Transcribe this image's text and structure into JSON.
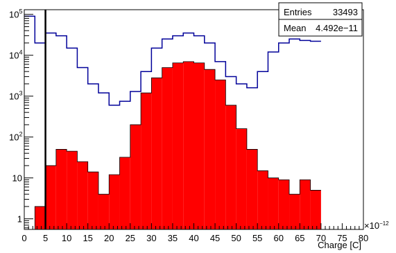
{
  "chart_data": {
    "type": "histogram",
    "xlabel": "Charge [C]",
    "x_multiplier": "×10",
    "x_multiplier_exp": "−12",
    "xlim": [
      0,
      80
    ],
    "ylim": [
      0.55,
      130000
    ],
    "y_scale": "log",
    "x_ticks": [
      0,
      5,
      10,
      15,
      20,
      25,
      30,
      35,
      40,
      45,
      50,
      55,
      60,
      65,
      70,
      75,
      80
    ],
    "y_ticks": [
      {
        "value": 1,
        "label": "1"
      },
      {
        "value": 10,
        "label": "10"
      },
      {
        "value": 100,
        "label": "10",
        "exp": "2"
      },
      {
        "value": 1000,
        "label": "10",
        "exp": "3"
      },
      {
        "value": 10000,
        "label": "10",
        "exp": "4"
      },
      {
        "value": 100000,
        "label": "10",
        "exp": "5"
      }
    ],
    "bin_width": 2.5,
    "bin_edges_start": 0,
    "series": [
      {
        "role": "outline",
        "color": "#000099",
        "filled": false,
        "values": [
          90000,
          20000,
          35000,
          30000,
          15000,
          5000,
          2000,
          1200,
          600,
          750,
          1300,
          4000,
          15000,
          25000,
          30000,
          35000,
          30000,
          20000,
          7000,
          3000,
          2000,
          1600,
          4000,
          12000,
          20000,
          25000,
          23000,
          22000
        ]
      },
      {
        "role": "filled",
        "color": "#ff0000",
        "filled": true,
        "values": [
          0,
          2,
          20,
          50,
          45,
          25,
          14,
          4,
          12,
          32,
          200,
          1200,
          2800,
          5000,
          6500,
          7000,
          6500,
          4500,
          2500,
          600,
          160,
          50,
          15,
          10,
          9,
          4,
          9,
          5
        ]
      }
    ],
    "cut_line_x": 5
  },
  "stats_box": {
    "rows": [
      {
        "label": "Entries",
        "value": "33493"
      },
      {
        "label": "Mean",
        "value": "4.492e−11"
      }
    ]
  },
  "colors": {
    "outline": "#000099",
    "fill": "#ff0000",
    "cut_line": "#000000"
  }
}
